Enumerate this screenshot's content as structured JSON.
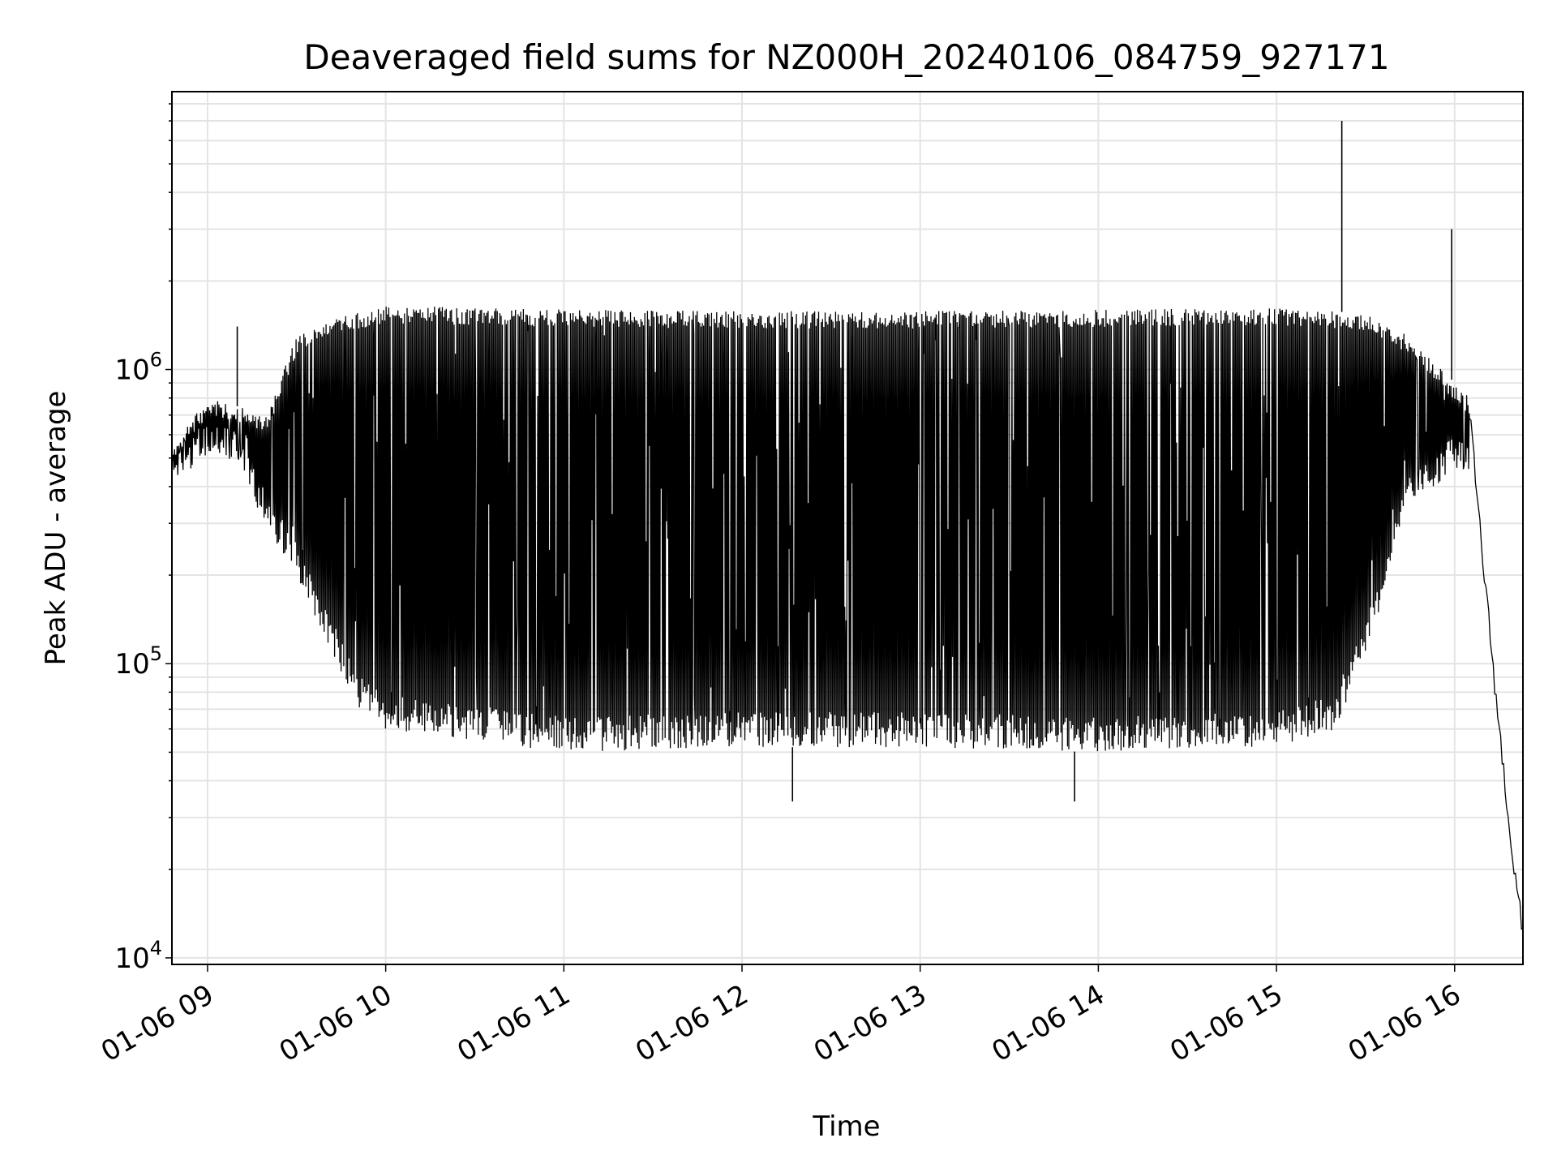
{
  "chart_data": {
    "type": "line",
    "title": "Deaveraged field sums for NZ000H_20240106_084759_927171",
    "xlabel": "Time",
    "ylabel": "Peak ADU - average",
    "yscale": "log",
    "ylim": [
      9500,
      8800000
    ],
    "xlim": [
      "2024-01-06 08:48",
      "2024-01-06 16:23"
    ],
    "grid": true,
    "x_ticks": [
      "01-06 09",
      "01-06 10",
      "01-06 11",
      "01-06 12",
      "01-06 13",
      "01-06 14",
      "01-06 15",
      "01-06 16"
    ],
    "y_ticks": [
      {
        "base": "10",
        "exp": "4",
        "value": 10000
      },
      {
        "base": "10",
        "exp": "5",
        "value": 100000
      },
      {
        "base": "10",
        "exp": "6",
        "value": 1000000
      }
    ],
    "line_color": "#000000",
    "series": [
      {
        "points": [
          [
            "2024-01-06 08:48",
            450000
          ],
          [
            "2024-01-06 08:55",
            580000
          ],
          [
            "2024-01-06 09:00",
            620000
          ],
          [
            "2024-01-06 09:10",
            600000
          ],
          [
            "2024-01-06 09:15",
            500000
          ],
          [
            "2024-01-06 09:20",
            380000
          ],
          [
            "2024-01-06 09:30",
            260000
          ],
          [
            "2024-01-06 09:40",
            150000
          ],
          [
            "2024-01-06 09:50",
            75000
          ],
          [
            "2024-01-06 10:00",
            62000
          ],
          [
            "2024-01-06 11:00",
            55000
          ],
          [
            "2024-01-06 12:00",
            57000
          ],
          [
            "2024-01-06 13:00",
            58000
          ],
          [
            "2024-01-06 14:00",
            56000
          ],
          [
            "2024-01-06 15:00",
            58000
          ],
          [
            "2024-01-06 15:20",
            65000
          ],
          [
            "2024-01-06 15:35",
            150000
          ],
          [
            "2024-01-06 15:45",
            400000
          ],
          [
            "2024-01-06 16:00",
            600000
          ],
          [
            "2024-01-06 16:05",
            700000
          ],
          [
            "2024-01-06 16:10",
            200000
          ],
          [
            "2024-01-06 16:15",
            60000
          ],
          [
            "2024-01-06 16:20",
            20000
          ],
          [
            "2024-01-06 16:23",
            12000
          ]
        ],
        "upper_envelope": [
          [
            "2024-01-06 08:48",
            550000
          ],
          [
            "2024-01-06 09:00",
            800000
          ],
          [
            "2024-01-06 09:10",
            750000
          ],
          [
            "2024-01-06 09:20",
            700000
          ],
          [
            "2024-01-06 09:30",
            1300000
          ],
          [
            "2024-01-06 09:40",
            1500000
          ],
          [
            "2024-01-06 10:00",
            1650000
          ],
          [
            "2024-01-06 11:00",
            1600000
          ],
          [
            "2024-01-06 12:00",
            1580000
          ],
          [
            "2024-01-06 13:00",
            1580000
          ],
          [
            "2024-01-06 14:00",
            1600000
          ],
          [
            "2024-01-06 15:00",
            1620000
          ],
          [
            "2024-01-06 15:30",
            1550000
          ],
          [
            "2024-01-06 15:45",
            1300000
          ],
          [
            "2024-01-06 16:00",
            900000
          ],
          [
            "2024-01-06 16:05",
            800000
          ]
        ],
        "lower_envelope": [
          [
            "2024-01-06 08:48",
            420000
          ],
          [
            "2024-01-06 09:00",
            500000
          ],
          [
            "2024-01-06 09:10",
            480000
          ],
          [
            "2024-01-06 09:20",
            280000
          ],
          [
            "2024-01-06 09:30",
            200000
          ],
          [
            "2024-01-06 09:40",
            120000
          ],
          [
            "2024-01-06 09:50",
            70000
          ],
          [
            "2024-01-06 10:00",
            60000
          ],
          [
            "2024-01-06 11:00",
            50000
          ],
          [
            "2024-01-06 12:00",
            52000
          ],
          [
            "2024-01-06 13:00",
            52000
          ],
          [
            "2024-01-06 14:00",
            50000
          ],
          [
            "2024-01-06 15:00",
            52000
          ],
          [
            "2024-01-06 15:20",
            60000
          ],
          [
            "2024-01-06 15:35",
            150000
          ],
          [
            "2024-01-06 15:45",
            350000
          ],
          [
            "2024-01-06 16:00",
            450000
          ]
        ],
        "spikes": [
          {
            "x": "2024-01-06 09:10",
            "y": 1400000
          },
          {
            "x": "2024-01-06 12:17",
            "y": 34000
          },
          {
            "x": "2024-01-06 13:52",
            "y": 34000
          },
          {
            "x": "2024-01-06 15:22",
            "y": 7000000
          },
          {
            "x": "2024-01-06 15:59",
            "y": 3000000
          }
        ]
      }
    ]
  }
}
